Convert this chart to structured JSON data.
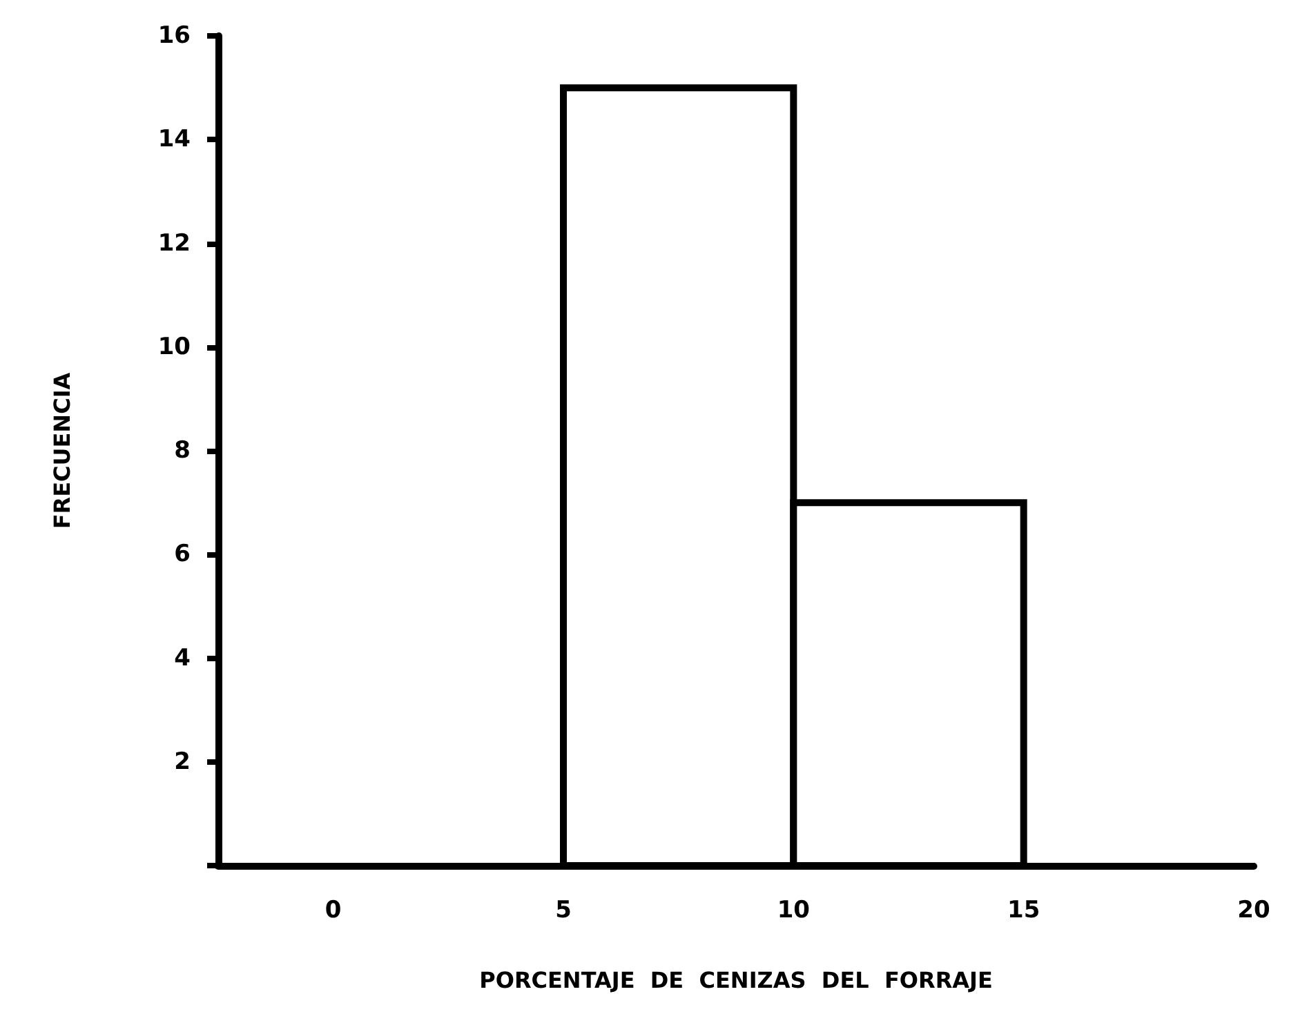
{
  "chart_data": {
    "type": "histogram",
    "xlabel": "PORCENTAJE  DE  CENIZAS  DEL  FORRAJE",
    "ylabel": "FRECUENCIA",
    "bins": [
      5,
      10,
      15
    ],
    "values": [
      15,
      7
    ],
    "color": "#ffffff",
    "xlim": [
      -2.5,
      20
    ],
    "xticks": [
      0,
      5,
      10,
      15,
      20
    ],
    "ylim": [
      0,
      16
    ],
    "yticks": [
      {
        "value": 0,
        "label": null
      },
      2,
      4,
      6,
      8,
      10,
      12,
      14,
      16
    ],
    "grid": false
  }
}
